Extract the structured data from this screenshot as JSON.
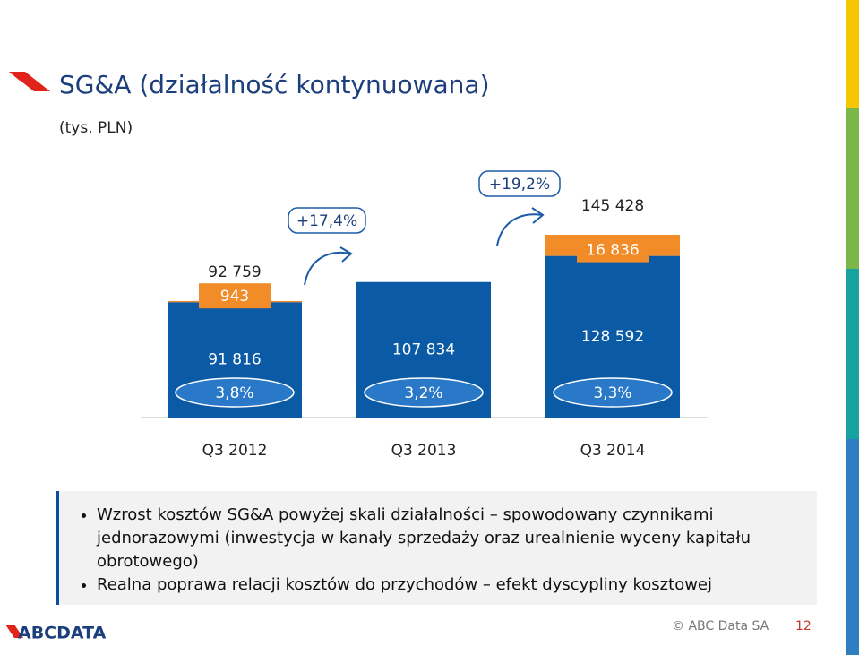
{
  "header": {
    "title": "SG&A (działalność kontynuowana)",
    "subtitle": "(tys. PLN)"
  },
  "chart_data": {
    "type": "stacked_bar",
    "categories": [
      "Q3 2012",
      "Q3 2013",
      "Q3 2014"
    ],
    "series": [
      {
        "color": "#0b5aa6",
        "values": [
          91816,
          107834,
          128592
        ],
        "value_labels": [
          "91 816",
          "107 834",
          "128 592"
        ]
      },
      {
        "color": "#f28c28",
        "values": [
          943,
          null,
          16836
        ],
        "value_labels": [
          "943",
          null,
          "16 836"
        ]
      }
    ],
    "totals": [
      92759,
      null,
      145428
    ],
    "total_labels": [
      "92 759",
      null,
      "145 428"
    ],
    "ratios": [
      3.8,
      3.2,
      3.3
    ],
    "ratio_labels": [
      "3,8%",
      "3,2%",
      "3,3%"
    ],
    "annotations": [
      "+17,4%",
      "+19,2%"
    ]
  },
  "bullets": [
    "Wzrost kosztów SG&A powyżej skali działalności – spowodowany czynnikami jednorazowymi (inwestycja w kanały sprzedaży oraz urealnienie wyceny kapitału obrotowego)",
    "Realna poprawa relacji kosztów do przychodów – efekt dyscypliny kosztowej"
  ],
  "footer": {
    "logo": "ABCDATA",
    "copyright": "© ABC Data SA",
    "page": "12"
  }
}
